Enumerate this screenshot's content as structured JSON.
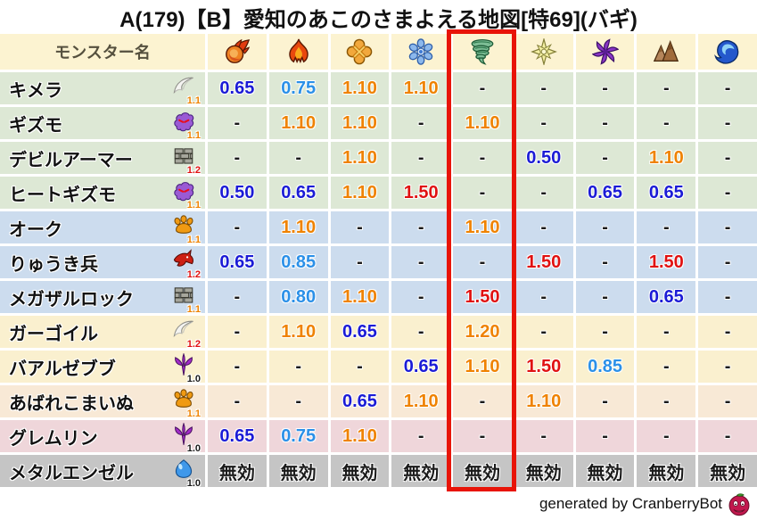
{
  "title": "A(179)【B】愛知のあこのさまよえる地図[特69](バギ)",
  "footer": {
    "credit": "generated by CranberryBot",
    "icon": "cranberry-bot-icon"
  },
  "table": {
    "name_header": "モンスター名",
    "header_bg": "#fcf3d1",
    "header_text_color": "#55503e",
    "highlight_color": "#e81408",
    "highlighted_column_index": 4,
    "element_columns": [
      {
        "icon": "fireball-icon"
      },
      {
        "icon": "flame-icon"
      },
      {
        "icon": "explosion-icon"
      },
      {
        "icon": "snowflake-icon"
      },
      {
        "icon": "tornado-icon",
        "highlighted": true
      },
      {
        "icon": "starburst-icon"
      },
      {
        "icon": "pinwheel-icon"
      },
      {
        "icon": "mountain-icon"
      },
      {
        "icon": "wave-icon"
      }
    ],
    "group_colors": [
      "#dde8d5",
      "#ccdcee",
      "#faf0cf",
      "#f8e9d6",
      "#efd6da",
      "#c5c5c5"
    ],
    "family_rate_colors": {
      "1.0": "#1a1a1a",
      "1.1": "#ef8200",
      "1.2": "#e01111"
    },
    "value_colors": {
      "strong_resist": "#1b1bd6",
      "resist": "#2b90e8",
      "weak": "#ef8200",
      "very_weak": "#e01111",
      "neutral": "#1a1a1a"
    },
    "rows": [
      {
        "name": "キメラ",
        "family_icon": "wing-icon",
        "family_rate": "1.1",
        "group": 0,
        "values": [
          "0.65",
          "0.75",
          "1.10",
          "1.10",
          "-",
          "-",
          "-",
          "-",
          "-"
        ]
      },
      {
        "name": "ギズモ",
        "family_icon": "elemental-ghost-icon",
        "family_rate": "1.1",
        "group": 0,
        "values": [
          "-",
          "1.10",
          "1.10",
          "-",
          "1.10",
          "-",
          "-",
          "-",
          "-"
        ]
      },
      {
        "name": "デビルアーマー",
        "family_icon": "brick-wall-icon",
        "family_rate": "1.2",
        "group": 0,
        "values": [
          "-",
          "-",
          "1.10",
          "-",
          "-",
          "0.50",
          "-",
          "1.10",
          "-"
        ]
      },
      {
        "name": "ヒートギズモ",
        "family_icon": "elemental-ghost-icon",
        "family_rate": "1.1",
        "group": 0,
        "values": [
          "0.50",
          "0.65",
          "1.10",
          "1.50",
          "-",
          "-",
          "0.65",
          "0.65",
          "-"
        ]
      },
      {
        "name": "オーク",
        "family_icon": "paw-icon",
        "family_rate": "1.1",
        "group": 1,
        "values": [
          "-",
          "1.10",
          "-",
          "-",
          "1.10",
          "-",
          "-",
          "-",
          "-"
        ]
      },
      {
        "name": "りゅうき兵",
        "family_icon": "dragon-head-icon",
        "family_rate": "1.2",
        "group": 1,
        "values": [
          "0.65",
          "0.85",
          "-",
          "-",
          "-",
          "1.50",
          "-",
          "1.50",
          "-"
        ]
      },
      {
        "name": "メガザルロック",
        "family_icon": "brick-wall-icon",
        "family_rate": "1.1",
        "group": 1,
        "values": [
          "-",
          "0.80",
          "1.10",
          "-",
          "1.50",
          "-",
          "-",
          "0.65",
          "-"
        ]
      },
      {
        "name": "ガーゴイル",
        "family_icon": "wing-icon",
        "family_rate": "1.2",
        "group": 2,
        "values": [
          "-",
          "1.10",
          "0.65",
          "-",
          "1.20",
          "-",
          "-",
          "-",
          "-"
        ]
      },
      {
        "name": "バアルゼブブ",
        "family_icon": "demon-trident-icon",
        "family_rate": "1.0",
        "group": 2,
        "values": [
          "-",
          "-",
          "-",
          "0.65",
          "1.10",
          "1.50",
          "0.85",
          "-",
          "-"
        ]
      },
      {
        "name": "あばれこまいぬ",
        "family_icon": "paw-icon",
        "family_rate": "1.1",
        "group": 3,
        "values": [
          "-",
          "-",
          "0.65",
          "1.10",
          "-",
          "1.10",
          "-",
          "-",
          "-"
        ]
      },
      {
        "name": "グレムリン",
        "family_icon": "demon-trident-icon",
        "family_rate": "1.0",
        "group": 4,
        "values": [
          "0.65",
          "0.75",
          "1.10",
          "-",
          "-",
          "-",
          "-",
          "-",
          "-"
        ]
      },
      {
        "name": "メタルエンゼル",
        "family_icon": "slime-icon",
        "family_rate": "1.0",
        "group": 5,
        "values": [
          "無効",
          "無効",
          "無効",
          "無効",
          "無効",
          "無効",
          "無効",
          "無効",
          "無効"
        ]
      }
    ]
  },
  "chart_data": {
    "type": "table",
    "title": "A(179)【B】愛知のあこのさまよえる地図[特69](バギ)",
    "columns": [
      "モンスター名",
      "fireball-icon",
      "flame-icon",
      "explosion-icon",
      "snowflake-icon",
      "tornado-icon",
      "starburst-icon",
      "pinwheel-icon",
      "mountain-icon",
      "wave-icon"
    ],
    "highlighted_column": "tornado-icon",
    "rows": [
      [
        "キメラ",
        "0.65",
        "0.75",
        "1.10",
        "1.10",
        "-",
        "-",
        "-",
        "-",
        "-"
      ],
      [
        "ギズモ",
        "-",
        "1.10",
        "1.10",
        "-",
        "1.10",
        "-",
        "-",
        "-",
        "-"
      ],
      [
        "デビルアーマー",
        "-",
        "-",
        "1.10",
        "-",
        "-",
        "0.50",
        "-",
        "1.10",
        "-"
      ],
      [
        "ヒートギズモ",
        "0.50",
        "0.65",
        "1.10",
        "1.50",
        "-",
        "-",
        "0.65",
        "0.65",
        "-"
      ],
      [
        "オーク",
        "-",
        "1.10",
        "-",
        "-",
        "1.10",
        "-",
        "-",
        "-",
        "-"
      ],
      [
        "りゅうき兵",
        "0.65",
        "0.85",
        "-",
        "-",
        "-",
        "1.50",
        "-",
        "1.50",
        "-"
      ],
      [
        "メガザルロック",
        "-",
        "0.80",
        "1.10",
        "-",
        "1.50",
        "-",
        "-",
        "0.65",
        "-"
      ],
      [
        "ガーゴイル",
        "-",
        "1.10",
        "0.65",
        "-",
        "1.20",
        "-",
        "-",
        "-",
        "-"
      ],
      [
        "バアルゼブブ",
        "-",
        "-",
        "-",
        "0.65",
        "1.10",
        "1.50",
        "0.85",
        "-",
        "-"
      ],
      [
        "あばれこまいぬ",
        "-",
        "-",
        "0.65",
        "1.10",
        "-",
        "1.10",
        "-",
        "-",
        "-"
      ],
      [
        "グレムリン",
        "0.65",
        "0.75",
        "1.10",
        "-",
        "-",
        "-",
        "-",
        "-",
        "-"
      ],
      [
        "メタルエンゼル",
        "無効",
        "無効",
        "無効",
        "無効",
        "無効",
        "無効",
        "無効",
        "無効",
        "無効"
      ]
    ]
  }
}
